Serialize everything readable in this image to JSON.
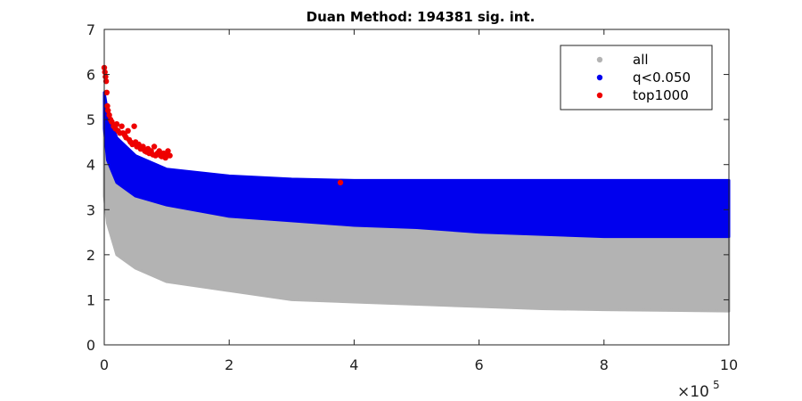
{
  "chart_data": {
    "type": "scatter",
    "title": "Duan Method: 194381 sig. int.",
    "xlim": [
      0,
      10
    ],
    "ylim": [
      0,
      7
    ],
    "x_multiplier_base": "×10",
    "x_multiplier_exponent": "5",
    "x_ticks": [
      0,
      2,
      4,
      6,
      8,
      10
    ],
    "x_tick_labels": [
      "0",
      "2",
      "4",
      "6",
      "8",
      "10"
    ],
    "y_ticks": [
      0,
      1,
      2,
      3,
      4,
      5,
      6,
      7
    ],
    "y_tick_labels": [
      "0",
      "1",
      "2",
      "3",
      "4",
      "5",
      "6",
      "7"
    ],
    "legend_position": "top-right",
    "series": [
      {
        "name": "all",
        "color": "#b3b3b3",
        "band": {
          "x": [
            0.0,
            0.05,
            0.2,
            0.5,
            1.0,
            2.0,
            3.0,
            4.0,
            5.0,
            6.0,
            7.0,
            8.0,
            10.0
          ],
          "upper": [
            5.0,
            4.4,
            3.9,
            3.55,
            3.3,
            3.05,
            2.9,
            2.8,
            2.7,
            2.6,
            2.55,
            2.5,
            2.45
          ],
          "lower": [
            3.3,
            2.7,
            2.0,
            1.7,
            1.4,
            1.2,
            1.0,
            0.95,
            0.9,
            0.85,
            0.8,
            0.78,
            0.75
          ]
        }
      },
      {
        "name": "q<0.050",
        "color": "#0000ee",
        "band": {
          "x": [
            0.0,
            0.05,
            0.2,
            0.5,
            1.0,
            2.0,
            3.0,
            4.0,
            5.0,
            6.0,
            7.0,
            8.0,
            10.0
          ],
          "upper": [
            5.6,
            5.2,
            4.6,
            4.2,
            3.9,
            3.75,
            3.68,
            3.65,
            3.65,
            3.65,
            3.65,
            3.65,
            3.65
          ],
          "lower": [
            4.8,
            4.1,
            3.6,
            3.3,
            3.1,
            2.85,
            2.75,
            2.65,
            2.6,
            2.5,
            2.45,
            2.4,
            2.4
          ]
        }
      },
      {
        "name": "top1000",
        "color": "#ee0000",
        "x": [
          0.0,
          0.01,
          0.02,
          0.03,
          0.04,
          0.05,
          0.06,
          0.08,
          0.1,
          0.12,
          0.15,
          0.18,
          0.2,
          0.22,
          0.25,
          0.28,
          0.3,
          0.33,
          0.35,
          0.38,
          0.4,
          0.42,
          0.45,
          0.48,
          0.5,
          0.52,
          0.55,
          0.58,
          0.6,
          0.62,
          0.65,
          0.68,
          0.7,
          0.72,
          0.75,
          0.78,
          0.8,
          0.82,
          0.85,
          0.88,
          0.9,
          0.92,
          0.95,
          0.98,
          1.0,
          1.02,
          1.05,
          3.78
        ],
        "y": [
          6.15,
          6.05,
          5.95,
          5.85,
          5.6,
          5.3,
          5.2,
          5.1,
          5.0,
          4.95,
          4.85,
          4.8,
          4.9,
          4.75,
          4.7,
          4.85,
          4.7,
          4.65,
          4.6,
          4.75,
          4.55,
          4.5,
          4.45,
          4.85,
          4.5,
          4.4,
          4.45,
          4.35,
          4.35,
          4.4,
          4.3,
          4.28,
          4.35,
          4.25,
          4.3,
          4.22,
          4.4,
          4.2,
          4.25,
          4.3,
          4.2,
          4.18,
          4.25,
          4.15,
          4.2,
          4.3,
          4.2,
          3.6
        ]
      }
    ]
  }
}
